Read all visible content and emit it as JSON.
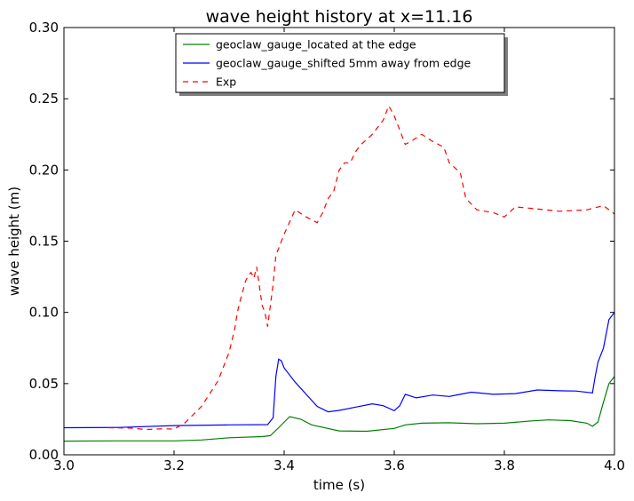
{
  "chart_data": {
    "type": "line",
    "title": "wave height history at x=11.16",
    "xlabel": "time (s)",
    "ylabel": "wave height (m)",
    "xlim": [
      3.0,
      4.0
    ],
    "ylim": [
      0.0,
      0.3
    ],
    "xticks": [
      "3.0",
      "3.2",
      "3.4",
      "3.6",
      "3.8",
      "4.0"
    ],
    "yticks": [
      "0.00",
      "0.05",
      "0.10",
      "0.15",
      "0.20",
      "0.25",
      "0.30"
    ],
    "grid": false,
    "legend_position": "upper-center",
    "series": [
      {
        "name": "geoclaw_gauge_located at the edge",
        "color": "#008000",
        "style": "solid",
        "x": [
          3.0,
          3.1,
          3.2,
          3.25,
          3.3,
          3.36,
          3.375,
          3.39,
          3.41,
          3.43,
          3.45,
          3.5,
          3.55,
          3.6,
          3.62,
          3.65,
          3.7,
          3.75,
          3.8,
          3.85,
          3.88,
          3.92,
          3.95,
          3.96,
          3.97,
          3.98,
          3.99,
          4.0
        ],
        "y": [
          0.0096,
          0.0098,
          0.0098,
          0.0104,
          0.012,
          0.0128,
          0.0135,
          0.019,
          0.0268,
          0.025,
          0.021,
          0.0168,
          0.0165,
          0.0185,
          0.021,
          0.0222,
          0.0225,
          0.0218,
          0.0222,
          0.0238,
          0.0245,
          0.024,
          0.0222,
          0.02,
          0.023,
          0.037,
          0.05,
          0.055
        ]
      },
      {
        "name": "geoclaw_gauge_shifted 5mm away from edge",
        "color": "#0000ff",
        "style": "solid",
        "x": [
          3.0,
          3.1,
          3.2,
          3.3,
          3.37,
          3.38,
          3.385,
          3.39,
          3.395,
          3.4,
          3.42,
          3.44,
          3.46,
          3.48,
          3.5,
          3.53,
          3.56,
          3.58,
          3.6,
          3.61,
          3.62,
          3.64,
          3.67,
          3.7,
          3.72,
          3.74,
          3.78,
          3.82,
          3.86,
          3.9,
          3.93,
          3.96,
          3.965,
          3.97,
          3.98,
          3.99,
          4.0
        ],
        "y": [
          0.019,
          0.0192,
          0.0205,
          0.021,
          0.0212,
          0.026,
          0.055,
          0.0672,
          0.066,
          0.061,
          0.051,
          0.0425,
          0.034,
          0.0302,
          0.0312,
          0.0335,
          0.0358,
          0.0345,
          0.031,
          0.0345,
          0.0425,
          0.04,
          0.042,
          0.041,
          0.0425,
          0.044,
          0.0425,
          0.043,
          0.0455,
          0.045,
          0.0448,
          0.0435,
          0.055,
          0.065,
          0.075,
          0.095,
          0.1
        ]
      },
      {
        "name": "Exp",
        "color": "#ff0000",
        "style": "dashed",
        "x": [
          3.08,
          3.12,
          3.15,
          3.18,
          3.2,
          3.22,
          3.25,
          3.28,
          3.3,
          3.31,
          3.315,
          3.32,
          3.33,
          3.335,
          3.34,
          3.345,
          3.35,
          3.36,
          3.365,
          3.37,
          3.38,
          3.385,
          3.4,
          3.42,
          3.44,
          3.46,
          3.47,
          3.48,
          3.49,
          3.5,
          3.51,
          3.52,
          3.53,
          3.54,
          3.56,
          3.58,
          3.59,
          3.6,
          3.61,
          3.62,
          3.63,
          3.65,
          3.67,
          3.69,
          3.7,
          3.72,
          3.73,
          3.75,
          3.78,
          3.8,
          3.82,
          3.85,
          3.9,
          3.95,
          3.98,
          4.0
        ],
        "y": [
          0.019,
          0.0188,
          0.0178,
          0.0183,
          0.018,
          0.0225,
          0.034,
          0.052,
          0.072,
          0.088,
          0.1,
          0.108,
          0.122,
          0.126,
          0.128,
          0.124,
          0.132,
          0.105,
          0.1,
          0.09,
          0.12,
          0.14,
          0.155,
          0.172,
          0.167,
          0.163,
          0.17,
          0.18,
          0.185,
          0.2,
          0.205,
          0.205,
          0.213,
          0.218,
          0.225,
          0.235,
          0.245,
          0.238,
          0.228,
          0.218,
          0.22,
          0.225,
          0.22,
          0.216,
          0.205,
          0.198,
          0.18,
          0.172,
          0.17,
          0.167,
          0.174,
          0.173,
          0.171,
          0.172,
          0.175,
          0.169
        ]
      }
    ]
  }
}
